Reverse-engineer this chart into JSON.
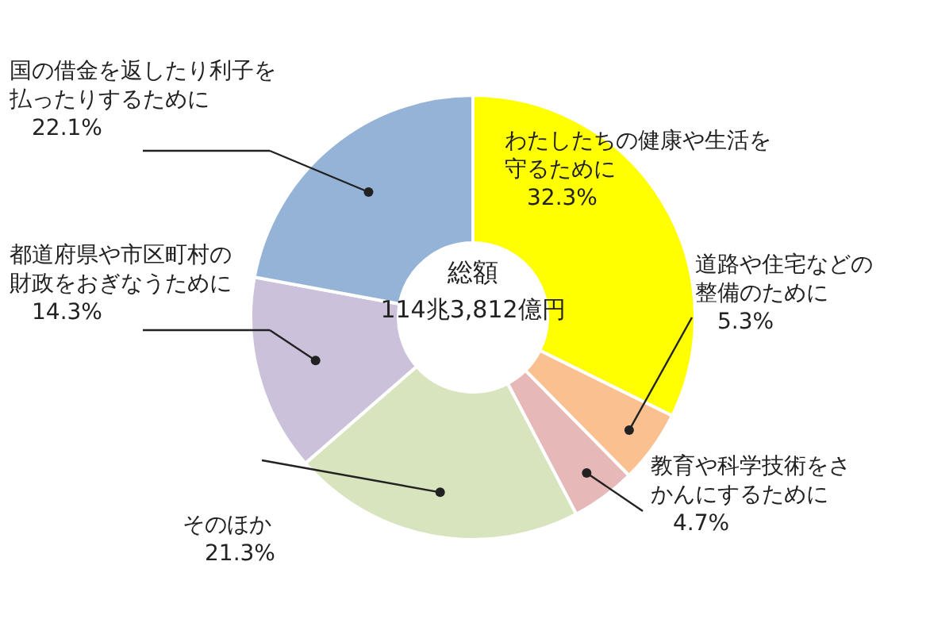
{
  "chart_data": {
    "type": "donut",
    "categories": [
      "わたしたちの健康や生活を守るために",
      "道路や住宅などの整備のために",
      "教育や科学技術をさかんにするために",
      "そのほか",
      "都道府県や市区町村の財政をおぎなうために",
      "国の借金を返したり利子を払ったりするために"
    ],
    "values": [
      32.3,
      5.3,
      4.7,
      21.3,
      14.3,
      22.1
    ],
    "value_labels": [
      "32.3%",
      "5.3%",
      "4.7%",
      "21.3%",
      "14.3%",
      "22.1%"
    ],
    "colors": [
      "#ffff00",
      "#fac090",
      "#e6b9b8",
      "#d7e4bd",
      "#ccc1da",
      "#95b3d7"
    ],
    "annotations": [
      "総額",
      "114兆3,812億円"
    ]
  }
}
